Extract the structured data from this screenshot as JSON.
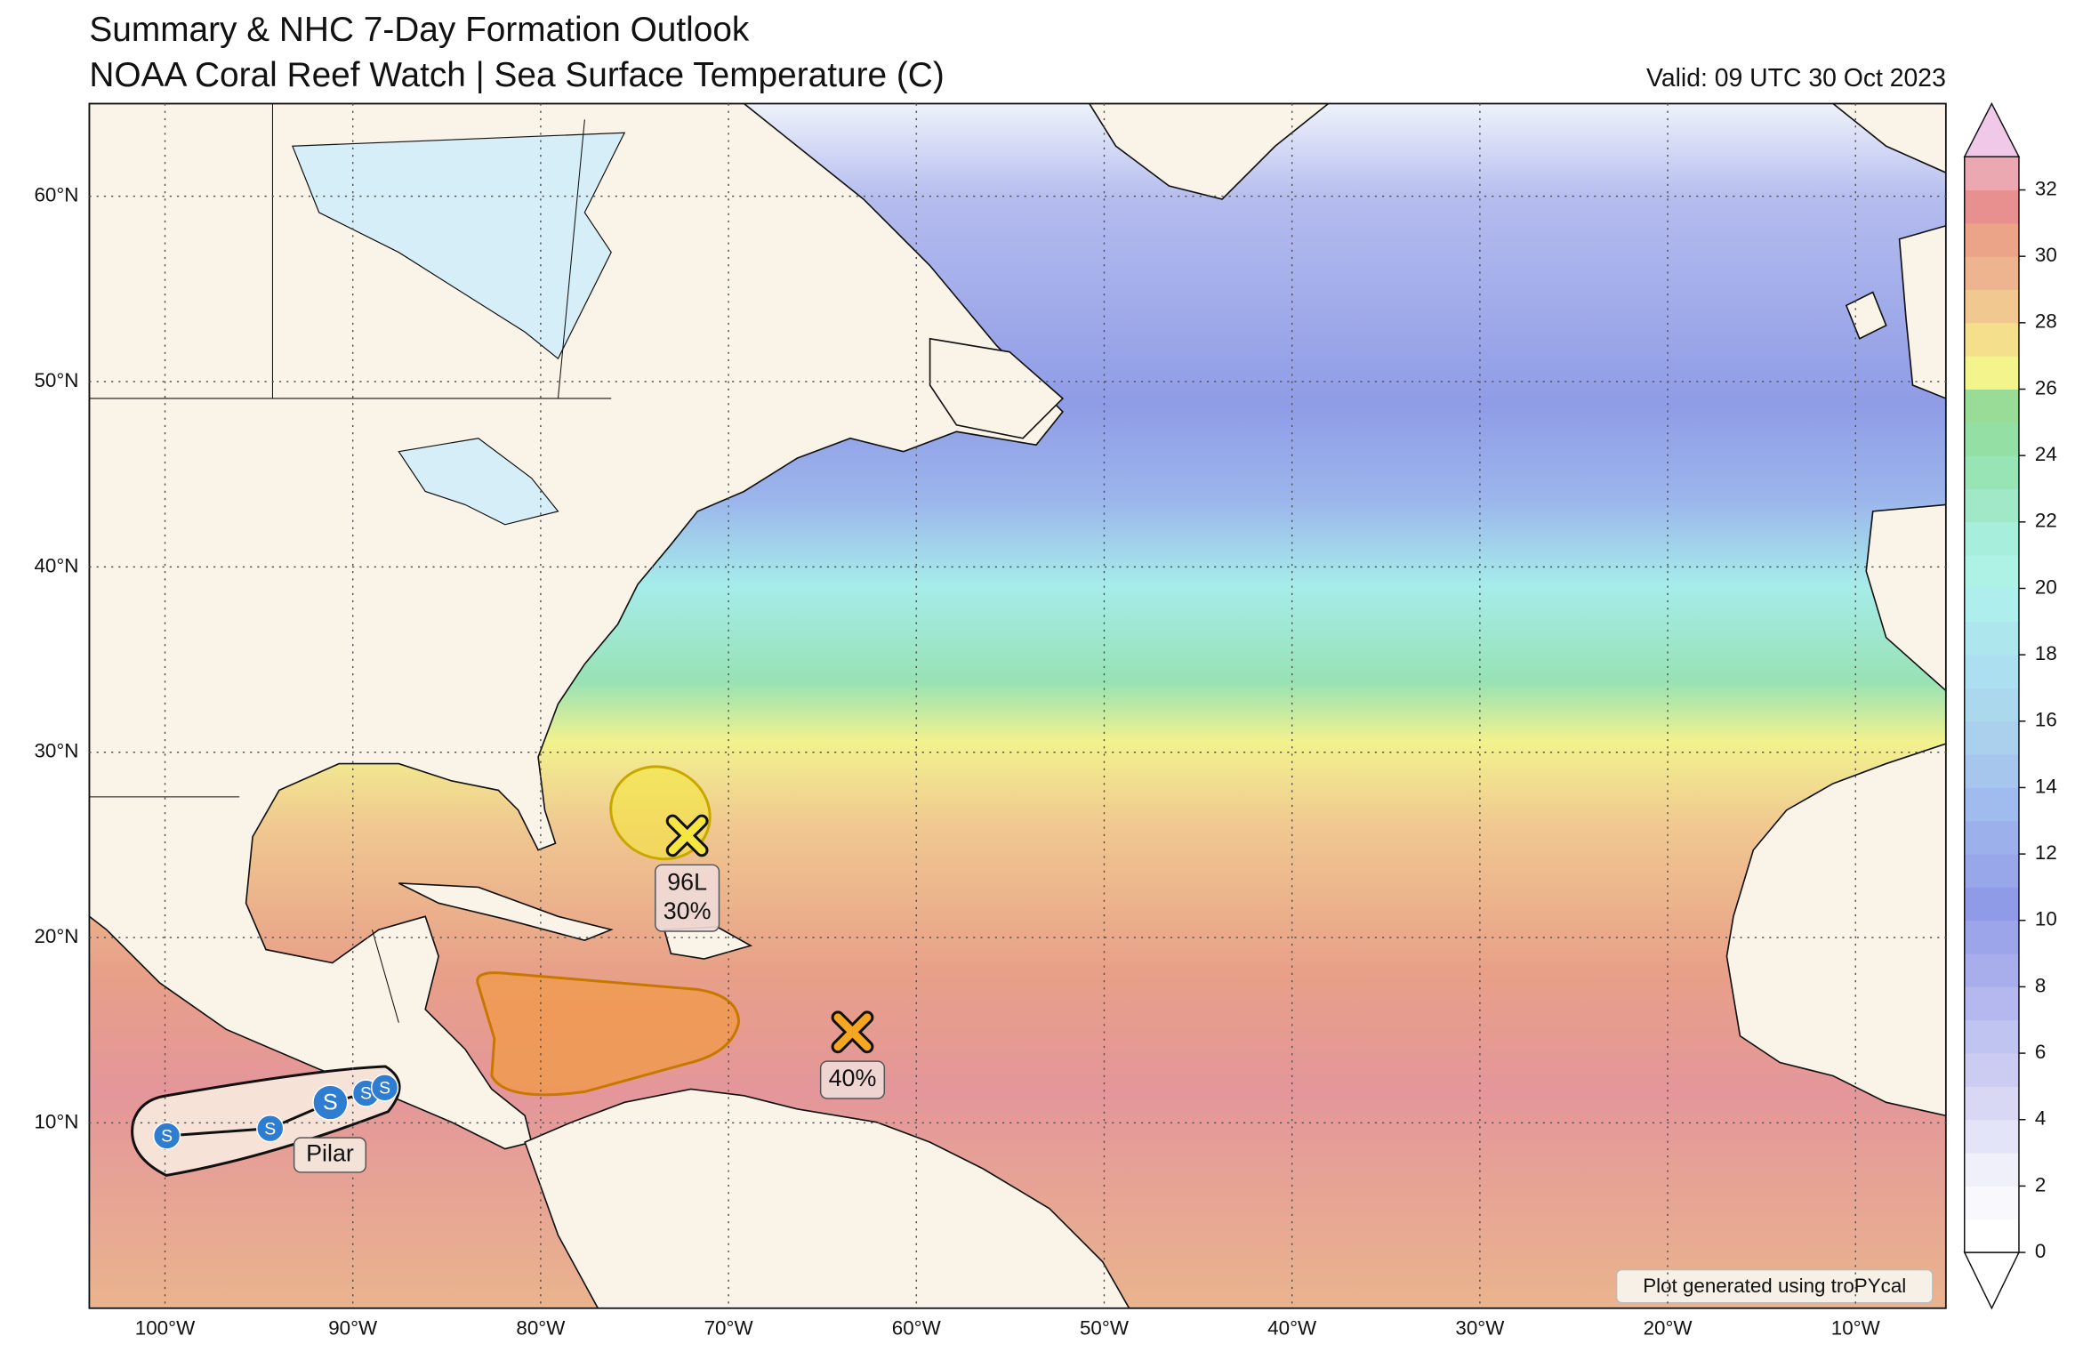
{
  "title": [
    "Summary & NHC 7-Day Formation Outlook",
    "NOAA Coral Reef Watch | Sea Surface Temperature (C)"
  ],
  "valid": "Valid: 09 UTC 30 Oct 2023",
  "credit": "Plot generated using troPYcal",
  "map": {
    "lonlim": [
      -104.03,
      -5.19
    ],
    "latlim": [
      0,
      65
    ],
    "grid": true,
    "lat_ticks": [
      {
        "value": 60,
        "label": "60°N"
      },
      {
        "value": 50,
        "label": "50°N"
      },
      {
        "value": 40,
        "label": "40°N"
      },
      {
        "value": 30,
        "label": "30°N"
      },
      {
        "value": 20,
        "label": "20°N"
      },
      {
        "value": 10,
        "label": "10°N"
      }
    ],
    "lon_ticks": [
      {
        "value": -100,
        "label": "100°W"
      },
      {
        "value": -90,
        "label": "90°W"
      },
      {
        "value": -80,
        "label": "80°W"
      },
      {
        "value": -70,
        "label": "70°W"
      },
      {
        "value": -60,
        "label": "60°W"
      },
      {
        "value": -50,
        "label": "50°W"
      },
      {
        "value": -40,
        "label": "40°W"
      },
      {
        "value": -30,
        "label": "30°W"
      },
      {
        "value": -20,
        "label": "20°W"
      },
      {
        "value": -10,
        "label": "10°W"
      }
    ]
  },
  "colorbar": {
    "range": [
      0,
      33
    ],
    "ticks": [
      0,
      2,
      4,
      6,
      8,
      10,
      12,
      14,
      16,
      18,
      20,
      22,
      24,
      26,
      28,
      30,
      32
    ],
    "colors": [
      "#ffffff",
      "#f8f8fd",
      "#f0f0fa",
      "#e4e4f8",
      "#d8d8f5",
      "#ccccf2",
      "#c0c4f0",
      "#b4b8ee",
      "#a8aeec",
      "#9ca4ea",
      "#909be8",
      "#98a6ea",
      "#9cb0ec",
      "#a0bcee",
      "#a6c6ee",
      "#aad0ee",
      "#acd8ee",
      "#acdff0",
      "#aee6ee",
      "#aeeeec",
      "#aef2e6",
      "#a8eedc",
      "#a0e8c8",
      "#98e4b4",
      "#94e0a4",
      "#98dc98",
      "#f4f48c",
      "#f4e08c",
      "#f0c890",
      "#eeb490",
      "#eca488",
      "#e89090",
      "#eca8b0"
    ]
  },
  "outlooks": [
    {
      "name": "96L",
      "chance_label": "30%",
      "lon": -72.2,
      "lat": 25.5,
      "color": "#f5e640"
    },
    {
      "chance_label": "40%",
      "lon": -63.4,
      "lat": 14.9,
      "color": "#f5a623"
    }
  ],
  "storm": {
    "name": "Pilar",
    "symbol": "S",
    "color": "#2e7dd1",
    "lon": [
      -99.9,
      -94.4,
      -91.2,
      -89.3,
      -88.3
    ],
    "lat": [
      9.3,
      9.7,
      11.1,
      11.6,
      11.9
    ]
  }
}
